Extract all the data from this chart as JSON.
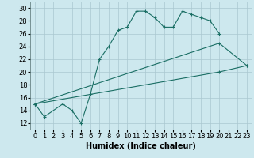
{
  "title": "",
  "xlabel": "Humidex (Indice chaleur)",
  "bg_color": "#cde8ee",
  "grid_color": "#aac8d0",
  "line_color": "#1a6e64",
  "xlim": [
    -0.5,
    23.5
  ],
  "ylim": [
    11,
    31
  ],
  "yticks": [
    12,
    14,
    16,
    18,
    20,
    22,
    24,
    26,
    28,
    30
  ],
  "xticks": [
    0,
    1,
    2,
    3,
    4,
    5,
    6,
    7,
    8,
    9,
    10,
    11,
    12,
    13,
    14,
    15,
    16,
    17,
    18,
    19,
    20,
    21,
    22,
    23
  ],
  "series1_x": [
    0,
    1,
    3,
    4,
    5,
    6,
    7,
    8,
    9,
    10,
    11,
    12,
    13,
    14,
    15,
    16,
    17,
    18,
    19,
    20
  ],
  "series1_y": [
    15.0,
    13.0,
    15.0,
    14.0,
    12.0,
    16.5,
    22.0,
    24.0,
    26.5,
    27.0,
    29.5,
    29.5,
    28.5,
    27.0,
    27.0,
    29.5,
    29.0,
    28.5,
    28.0,
    26.0
  ],
  "series2_x": [
    0,
    20,
    23
  ],
  "series2_y": [
    15.0,
    24.5,
    21.0
  ],
  "series3_x": [
    0,
    20,
    23
  ],
  "series3_y": [
    15.0,
    20.0,
    21.0
  ],
  "tick_fontsize": 6,
  "xlabel_fontsize": 7
}
